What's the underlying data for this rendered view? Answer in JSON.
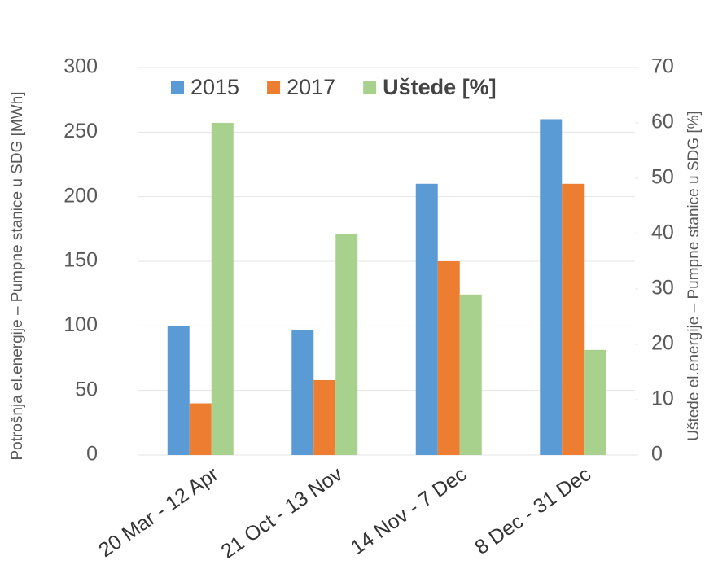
{
  "chart_data": {
    "type": "bar",
    "categories": [
      "20 Mar - 12 Apr",
      "21 Oct - 13 Nov",
      "14 Nov - 7 Dec",
      "8 Dec - 31 Dec"
    ],
    "series": [
      {
        "name": "2015",
        "color": "#5b9bd5",
        "values": [
          100,
          97,
          210,
          260
        ]
      },
      {
        "name": "2017",
        "color": "#ed7d31",
        "values": [
          40,
          58,
          150,
          210
        ]
      },
      {
        "name": "Uštede [%]",
        "color": "#a9d18e",
        "axis": "y2",
        "values": [
          60,
          40,
          29,
          19
        ]
      }
    ],
    "ylabel": "Potrošnja el.energije – Pumpne stanice u SDG [MWh]",
    "y2label": "Uštede el.energije – Pumpne stanice u SDG [%]",
    "ylim": [
      0,
      300
    ],
    "yticks": [
      0,
      50,
      100,
      150,
      200,
      250,
      300
    ],
    "y2lim": [
      0,
      70
    ],
    "y2ticks": [
      0,
      10,
      20,
      30,
      40,
      50,
      60,
      70
    ],
    "grid": true,
    "legend": "top"
  }
}
